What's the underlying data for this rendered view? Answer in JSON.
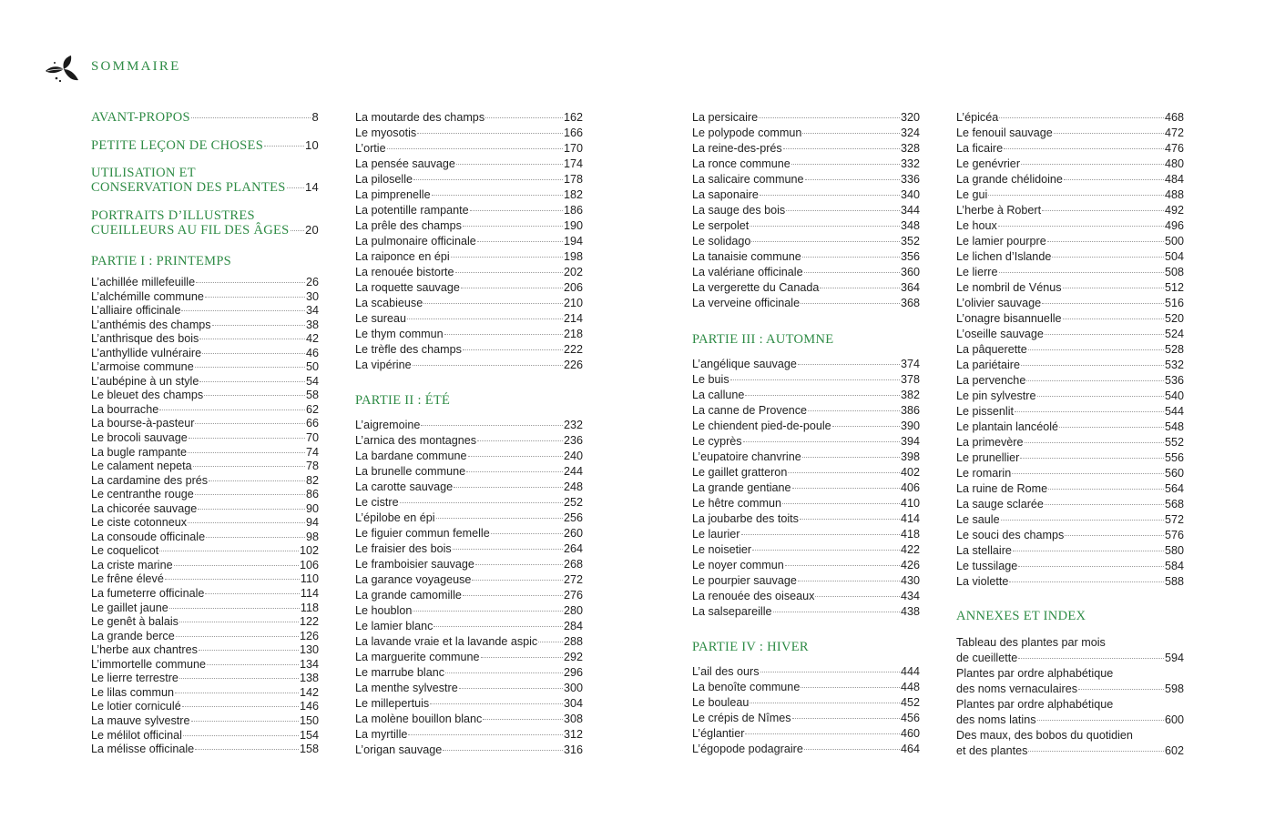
{
  "page": {
    "title": "SOMMAIRE",
    "logo_icon": "leaf-sprig-icon",
    "accent_color": "#2e8b45"
  },
  "columns": [
    {
      "sections": [
        {
          "heading": "",
          "major": true,
          "entries": [
            {
              "title": "AVANT-PROPOS",
              "page": "8"
            }
          ]
        },
        {
          "heading": "",
          "major": true,
          "entries": [
            {
              "title": "PETITE LEÇON DE CHOSES",
              "page": "10"
            }
          ]
        },
        {
          "heading": "",
          "major": true,
          "entries": [
            {
              "title": "UTILISATION ET\nCONSERVATION DES PLANTES",
              "page": "14"
            }
          ]
        },
        {
          "heading": "",
          "major": true,
          "entries": [
            {
              "title": "PORTRAITS D’ILLUSTRES\nCUEILLEURS AU FIL DES ÂGES",
              "page": "20"
            }
          ]
        },
        {
          "heading": "PARTIE I : PRINTEMPS",
          "tight": true,
          "entries": [
            {
              "title": "L’achillée millefeuille",
              "page": "26"
            },
            {
              "title": "L’alchémille commune",
              "page": "30"
            },
            {
              "title": "L’alliaire officinale",
              "page": "34"
            },
            {
              "title": "L’anthémis des champs",
              "page": "38"
            },
            {
              "title": "L’anthrisque des bois",
              "page": "42"
            },
            {
              "title": "L’anthyllide vulnéraire",
              "page": "46"
            },
            {
              "title": "L’armoise commune",
              "page": "50"
            },
            {
              "title": "L’aubépine à un style",
              "page": "54"
            },
            {
              "title": "Le bleuet des champs",
              "page": "58"
            },
            {
              "title": "La bourrache",
              "page": "62"
            },
            {
              "title": "La bourse-à-pasteur",
              "page": "66"
            },
            {
              "title": "Le brocoli sauvage",
              "page": "70"
            },
            {
              "title": "La bugle rampante",
              "page": "74"
            },
            {
              "title": "Le calament nepeta",
              "page": "78"
            },
            {
              "title": "La cardamine des prés",
              "page": "82"
            },
            {
              "title": "Le centranthe rouge",
              "page": "86"
            },
            {
              "title": "La chicorée sauvage",
              "page": "90"
            },
            {
              "title": "Le ciste cotonneux",
              "page": "94"
            },
            {
              "title": "La consoude officinale",
              "page": "98"
            },
            {
              "title": "Le coquelicot",
              "page": "102"
            },
            {
              "title": "La criste marine",
              "page": "106"
            },
            {
              "title": "Le frêne élevé",
              "page": "110"
            },
            {
              "title": "La fumeterre officinale",
              "page": "114"
            },
            {
              "title": "Le gaillet jaune",
              "page": "118"
            },
            {
              "title": "Le genêt à balais",
              "page": "122"
            },
            {
              "title": "La grande berce",
              "page": "126"
            },
            {
              "title": "L’herbe aux chantres",
              "page": "130"
            },
            {
              "title": "L’immortelle commune",
              "page": "134"
            },
            {
              "title": "Le lierre terrestre",
              "page": "138"
            },
            {
              "title": "Le lilas commun",
              "page": "142"
            },
            {
              "title": "Le lotier corniculé",
              "page": "146"
            },
            {
              "title": "La mauve sylvestre",
              "page": "150"
            },
            {
              "title": "Le mélilot officinal",
              "page": "154"
            },
            {
              "title": "La mélisse officinale",
              "page": "158"
            }
          ]
        }
      ]
    },
    {
      "sections": [
        {
          "heading": "",
          "entries": [
            {
              "title": "La moutarde des champs",
              "page": "162"
            },
            {
              "title": "Le myosotis",
              "page": "166"
            },
            {
              "title": "L’ortie",
              "page": "170"
            },
            {
              "title": "La pensée sauvage",
              "page": "174"
            },
            {
              "title": "La piloselle",
              "page": "178"
            },
            {
              "title": "La pimprenelle",
              "page": "182"
            },
            {
              "title": "La potentille rampante",
              "page": "186"
            },
            {
              "title": "La prêle des champs",
              "page": "190"
            },
            {
              "title": "La pulmonaire officinale",
              "page": "194"
            },
            {
              "title": "La raiponce en épi",
              "page": "198"
            },
            {
              "title": "La renouée bistorte",
              "page": "202"
            },
            {
              "title": "La roquette sauvage",
              "page": "206"
            },
            {
              "title": "La scabieuse",
              "page": "210"
            },
            {
              "title": "Le sureau",
              "page": "214"
            },
            {
              "title": "Le thym commun",
              "page": "218"
            },
            {
              "title": "Le trèfle des champs",
              "page": "222"
            },
            {
              "title": "La vipérine",
              "page": "226"
            }
          ]
        },
        {
          "heading": "PARTIE II : ÉTÉ",
          "entries": [
            {
              "title": "L’aigremoine",
              "page": "232"
            },
            {
              "title": "L’arnica des montagnes",
              "page": "236"
            },
            {
              "title": "La bardane commune",
              "page": "240"
            },
            {
              "title": "La brunelle commune",
              "page": "244"
            },
            {
              "title": "La carotte sauvage",
              "page": "248"
            },
            {
              "title": "Le cistre",
              "page": "252"
            },
            {
              "title": "L’épilobe en épi",
              "page": "256"
            },
            {
              "title": "Le figuier commun femelle",
              "page": "260"
            },
            {
              "title": "Le fraisier des bois",
              "page": "264"
            },
            {
              "title": "Le framboisier sauvage",
              "page": "268"
            },
            {
              "title": "La garance voyageuse",
              "page": "272"
            },
            {
              "title": "La grande camomille",
              "page": "276"
            },
            {
              "title": "Le houblon",
              "page": "280"
            },
            {
              "title": "Le lamier blanc",
              "page": "284"
            },
            {
              "title": "La lavande vraie et la lavande aspic",
              "page": "288"
            },
            {
              "title": "La marguerite commune",
              "page": "292"
            },
            {
              "title": "Le marrube blanc",
              "page": "296"
            },
            {
              "title": "La menthe sylvestre",
              "page": "300"
            },
            {
              "title": "Le millepertuis",
              "page": "304"
            },
            {
              "title": "La molène bouillon blanc",
              "page": "308"
            },
            {
              "title": "La myrtille",
              "page": "312"
            },
            {
              "title": "L’origan sauvage",
              "page": "316"
            }
          ]
        }
      ]
    },
    {
      "sections": [
        {
          "heading": "",
          "entries": [
            {
              "title": "La persicaire",
              "page": "320"
            },
            {
              "title": "Le polypode commun",
              "page": "324"
            },
            {
              "title": "La reine-des-prés",
              "page": "328"
            },
            {
              "title": "La ronce commune",
              "page": "332"
            },
            {
              "title": "La salicaire commune",
              "page": "336"
            },
            {
              "title": "La saponaire",
              "page": "340"
            },
            {
              "title": "La sauge des bois",
              "page": "344"
            },
            {
              "title": "Le serpolet",
              "page": "348"
            },
            {
              "title": "Le solidago",
              "page": "352"
            },
            {
              "title": "La tanaisie commune",
              "page": "356"
            },
            {
              "title": "La valériane officinale",
              "page": "360"
            },
            {
              "title": "La vergerette du Canada",
              "page": "364"
            },
            {
              "title": "La verveine officinale",
              "page": "368"
            }
          ]
        },
        {
          "heading": "PARTIE III : AUTOMNE",
          "entries": [
            {
              "title": "L’angélique sauvage",
              "page": "374"
            },
            {
              "title": "Le buis",
              "page": "378"
            },
            {
              "title": "La callune",
              "page": "382"
            },
            {
              "title": "La canne de Provence",
              "page": "386"
            },
            {
              "title": "Le chiendent pied-de-poule",
              "page": "390"
            },
            {
              "title": "Le cyprès",
              "page": "394"
            },
            {
              "title": "L’eupatoire chanvrine",
              "page": "398"
            },
            {
              "title": "Le gaillet gratteron",
              "page": "402"
            },
            {
              "title": "La grande gentiane",
              "page": "406"
            },
            {
              "title": "Le hêtre commun",
              "page": "410"
            },
            {
              "title": "La joubarbe des toits",
              "page": "414"
            },
            {
              "title": "Le laurier",
              "page": "418"
            },
            {
              "title": "Le noisetier",
              "page": "422"
            },
            {
              "title": "Le noyer commun",
              "page": "426"
            },
            {
              "title": "Le pourpier sauvage",
              "page": "430"
            },
            {
              "title": "La renouée des oiseaux",
              "page": "434"
            },
            {
              "title": "La salsepareille",
              "page": "438"
            }
          ]
        },
        {
          "heading": "PARTIE IV : HIVER",
          "entries": [
            {
              "title": "L’ail des ours",
              "page": "444"
            },
            {
              "title": "La benoîte commune",
              "page": "448"
            },
            {
              "title": "Le bouleau",
              "page": "452"
            },
            {
              "title": "Le crépis de Nîmes",
              "page": "456"
            },
            {
              "title": "L’églantier",
              "page": "460"
            },
            {
              "title": "L’égopode podagraire",
              "page": "464"
            }
          ]
        }
      ]
    },
    {
      "sections": [
        {
          "heading": "",
          "entries": [
            {
              "title": "L’épicéa",
              "page": "468"
            },
            {
              "title": "Le fenouil sauvage",
              "page": "472"
            },
            {
              "title": "La ficaire",
              "page": "476"
            },
            {
              "title": "Le genévrier",
              "page": "480"
            },
            {
              "title": "La grande chélidoine",
              "page": "484"
            },
            {
              "title": "Le gui",
              "page": "488"
            },
            {
              "title": "L’herbe à Robert",
              "page": "492"
            },
            {
              "title": "Le houx",
              "page": "496"
            },
            {
              "title": "Le lamier pourpre",
              "page": "500"
            },
            {
              "title": "Le lichen d’Islande",
              "page": "504"
            },
            {
              "title": "Le lierre",
              "page": "508"
            },
            {
              "title": "Le nombril de Vénus",
              "page": "512"
            },
            {
              "title": "L’olivier sauvage",
              "page": "516"
            },
            {
              "title": "L’onagre bisannuelle",
              "page": "520"
            },
            {
              "title": "L’oseille sauvage",
              "page": "524"
            },
            {
              "title": "La pâquerette",
              "page": "528"
            },
            {
              "title": "La pariétaire",
              "page": "532"
            },
            {
              "title": "La pervenche",
              "page": "536"
            },
            {
              "title": "Le pin sylvestre",
              "page": "540"
            },
            {
              "title": "Le pissenlit",
              "page": "544"
            },
            {
              "title": "Le plantain lancéolé",
              "page": "548"
            },
            {
              "title": "La primevère",
              "page": "552"
            },
            {
              "title": "Le prunellier",
              "page": "556"
            },
            {
              "title": "Le romarin",
              "page": "560"
            },
            {
              "title": "La ruine de Rome",
              "page": "564"
            },
            {
              "title": "La sauge sclarée",
              "page": "568"
            },
            {
              "title": "Le saule",
              "page": "572"
            },
            {
              "title": "Le souci des champs",
              "page": "576"
            },
            {
              "title": "La stellaire",
              "page": "580"
            },
            {
              "title": "Le tussilage",
              "page": "584"
            },
            {
              "title": "La violette",
              "page": "588"
            }
          ]
        },
        {
          "heading": "ANNEXES ET INDEX",
          "entries": [
            {
              "title": "Tableau des plantes par mois\nde cueillette",
              "page": "594"
            },
            {
              "title": "Plantes par ordre alphabétique\ndes noms vernaculaires",
              "page": "598"
            },
            {
              "title": "Plantes par ordre alphabétique\ndes noms latins",
              "page": "600"
            },
            {
              "title": "Des maux, des bobos du quotidien\net des plantes",
              "page": "602"
            }
          ]
        }
      ]
    }
  ]
}
